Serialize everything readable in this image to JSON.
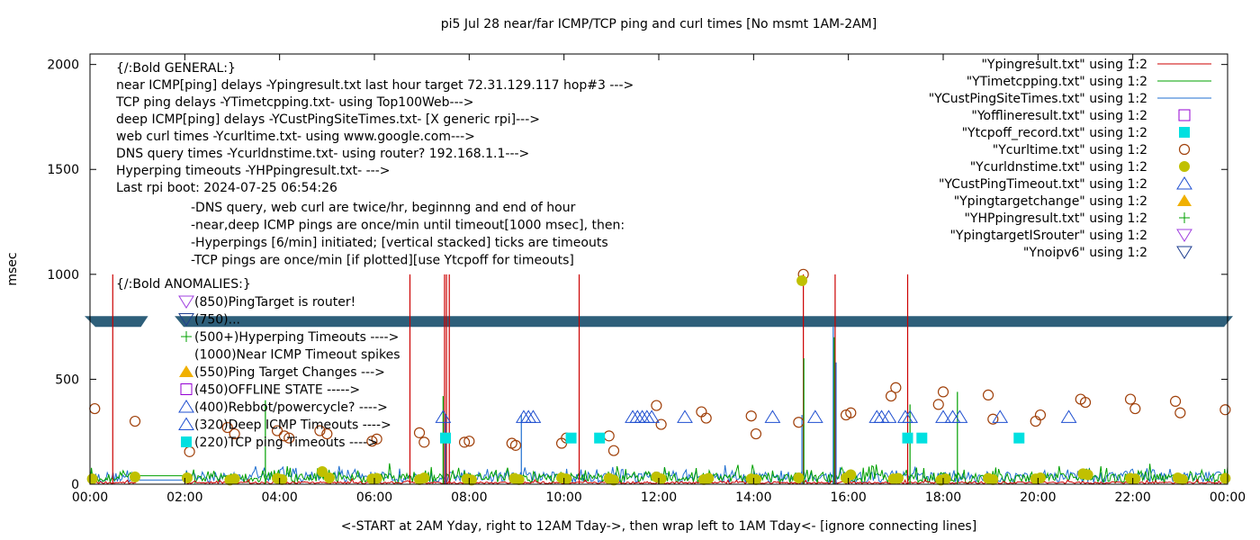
{
  "chart_data": {
    "type": "line",
    "title": "pi5 Jul 28  near/far ICMP/TCP ping and curl times [No msmt 1AM-2AM]",
    "xlabel": "<-START at 2AM Yday, right to 12AM Tday->, then wrap left to 1AM Tday<- [ignore connecting lines]",
    "ylabel": "msec",
    "xlim": [
      0,
      24
    ],
    "ylim": [
      0,
      2050
    ],
    "grid": false,
    "legend_position": "top-right",
    "x_ticks": [
      {
        "v": 0,
        "label": "00:00"
      },
      {
        "v": 2,
        "label": "02:00"
      },
      {
        "v": 4,
        "label": "04:00"
      },
      {
        "v": 6,
        "label": "06:00"
      },
      {
        "v": 8,
        "label": "08:00"
      },
      {
        "v": 10,
        "label": "10:00"
      },
      {
        "v": 12,
        "label": "12:00"
      },
      {
        "v": 14,
        "label": "14:00"
      },
      {
        "v": 16,
        "label": "16:00"
      },
      {
        "v": 18,
        "label": "18:00"
      },
      {
        "v": 20,
        "label": "20:00"
      },
      {
        "v": 22,
        "label": "22:00"
      },
      {
        "v": 24,
        "label": "00:00"
      }
    ],
    "y_ticks": [
      {
        "v": 0,
        "label": "0"
      },
      {
        "v": 500,
        "label": "500"
      },
      {
        "v": 1000,
        "label": "1000"
      },
      {
        "v": 1500,
        "label": "1500"
      },
      {
        "v": 2000,
        "label": "2000"
      }
    ],
    "legend": [
      {
        "label": "\"Ypingresult.txt\" using 1:2",
        "marker": "line",
        "color": "#cc0000"
      },
      {
        "label": "\"YTimetcpping.txt\" using 1:2",
        "marker": "line",
        "color": "#00a000"
      },
      {
        "label": "\"YCustPingSiteTimes.txt\" using 1:2",
        "marker": "line",
        "color": "#1f6fd0"
      },
      {
        "label": "\"Yofflineresult.txt\" using 1:2",
        "marker": "open-square",
        "color": "#9400d3"
      },
      {
        "label": "\"Ytcpoff_record.txt\" using 1:2",
        "marker": "filled-square",
        "color": "#00e0e0"
      },
      {
        "label": "\"Ycurltime.txt\" using 1:2",
        "marker": "open-circle",
        "color": "#a0400a"
      },
      {
        "label": "\"Ycurldnstime.txt\" using 1:2",
        "marker": "filled-circle",
        "color": "#c0c000"
      },
      {
        "label": "\"YCustPingTimeout.txt\" using 1:2",
        "marker": "open-triangle-up",
        "color": "#1f4fd0"
      },
      {
        "label": "\"Ypingtargetchange\" using 1:2",
        "marker": "filled-triangle-up",
        "color": "#f0b000"
      },
      {
        "label": "\"YHPpingresult.txt\" using 1:2",
        "marker": "plus",
        "color": "#00a000"
      },
      {
        "label": "\"YpingtargetISrouter\" using 1:2",
        "marker": "open-triangle-down",
        "color": "#a040e0"
      },
      {
        "label": "\"Ynoipv6\" using 1:2",
        "marker": "open-triangle-down",
        "color": "#1f3f90"
      }
    ],
    "annotation_lines": [
      "{/:Bold GENERAL:}",
      "near ICMP[ping] delays -Ypingresult.txt last hour target 72.31.129.117 hop#3 --->",
      "TCP ping delays -YTimetcpping.txt- using Top100Web--->",
      "deep ICMP[ping] delays -YCustPingSiteTimes.txt- [X generic rpi]--->",
      "web curl times -Ycurltime.txt- using www.google.com--->",
      "DNS query times -Ycurldnstime.txt- using router? 192.168.1.1--->",
      "Hyperping timeouts -YHPpingresult.txt- --->",
      "Last rpi boot: 2024-07-25 06:54:26"
    ],
    "notes_lines": [
      "-DNS query, web curl are twice/hr, beginnng and end of hour",
      "-near,deep ICMP pings are once/min until timeout[1000 msec], then:",
      "  -Hyperpings [6/min] initiated; [vertical stacked] ticks are timeouts",
      "-TCP pings are once/min [if plotted][use Ytcpoff for timeouts]"
    ],
    "anomalies_title": "{/:Bold ANOMALIES:}",
    "anomalies": [
      {
        "label": "(850)PingTarget is router!",
        "marker": "open-triangle-down",
        "color": "#a040e0",
        "level": 850
      },
      {
        "label": "(750)...",
        "marker": "open-triangle-down",
        "color": "#1f3f90",
        "level": 750
      },
      {
        "label": "(500+)Hyperping Timeouts ---->",
        "marker": "plus",
        "color": "#00a000",
        "level": 500
      },
      {
        "label": "(1000)Near ICMP Timeout spikes",
        "marker": "none",
        "color": "#cc0000",
        "level": 1000
      },
      {
        "label": "(550)Ping Target Changes --->",
        "marker": "filled-triangle-up",
        "color": "#f0b000",
        "level": 550
      },
      {
        "label": "(450)OFFLINE STATE ----->",
        "marker": "open-square",
        "color": "#9400d3",
        "level": 450
      },
      {
        "label": "(400)Rebbot/powercycle? ---->",
        "marker": "open-triangle-up",
        "color": "#1f4fd0",
        "level": 400
      },
      {
        "label": "(320)Deep ICMP Timeouts ---->",
        "marker": "open-triangle-up",
        "color": "#1f4fd0",
        "level": 320
      },
      {
        "label": "(220)TCP ping Timeouts ---->",
        "marker": "filled-square",
        "color": "#00e0e0",
        "level": 220
      }
    ],
    "noipv6_band": {
      "y": 775,
      "color": "#2e5f7a",
      "gap_x": [
        1.15,
        1.9
      ]
    },
    "series_ping_spikes": {
      "name": "Ypingresult.txt",
      "color": "#cc0000",
      "x": [
        0.48,
        6.75,
        7.48,
        7.52,
        7.58,
        10.32,
        15.05,
        15.72,
        17.25
      ],
      "y": [
        1000,
        1000,
        1000,
        1000,
        1000,
        1000,
        1000,
        1000,
        1000
      ]
    },
    "series_deep_spikes": {
      "name": "YCustPingSiteTimes.txt",
      "color": "#1f6fd0",
      "x": [
        7.5,
        9.1,
        15.02,
        15.68,
        15.74
      ],
      "y": [
        330,
        330,
        330,
        750,
        580
      ]
    },
    "series_hp_spikes": {
      "name": "YHPpingresult.txt",
      "color": "#00a000",
      "x": [
        3.7,
        7.45,
        15.06,
        15.7,
        17.3,
        18.3
      ],
      "y": [
        400,
        420,
        600,
        700,
        380,
        440
      ]
    },
    "series_curltime": {
      "x": [
        0.1,
        0.95,
        2.1,
        2.9,
        3.05,
        3.95,
        4.1,
        4.2,
        4.85,
        5.0,
        5.95,
        6.05,
        6.95,
        7.05,
        7.9,
        8.0,
        8.9,
        8.98,
        9.95,
        10.05,
        10.95,
        11.05,
        11.95,
        12.05,
        12.9,
        13.0,
        13.95,
        14.05,
        14.95,
        15.05,
        15.95,
        16.05,
        16.9,
        17.0,
        17.9,
        18.0,
        18.95,
        19.05,
        19.95,
        20.05,
        20.9,
        21.0,
        21.95,
        22.05,
        22.9,
        23.0,
        23.95
      ],
      "y": [
        360,
        300,
        155,
        270,
        240,
        255,
        230,
        220,
        255,
        240,
        205,
        215,
        245,
        200,
        200,
        205,
        195,
        185,
        195,
        220,
        230,
        160,
        375,
        285,
        345,
        315,
        325,
        240,
        295,
        1000,
        330,
        340,
        420,
        460,
        380,
        440,
        425,
        310,
        300,
        330,
        405,
        390,
        405,
        360,
        395,
        340,
        355
      ]
    },
    "series_dnstime": {
      "x": [
        0.05,
        0.95,
        2.05,
        2.95,
        3.05,
        3.95,
        4.05,
        4.9,
        5.05,
        5.95,
        6.05,
        6.95,
        7.05,
        7.95,
        8.05,
        8.95,
        9.05,
        9.95,
        10.05,
        10.95,
        11.05,
        11.95,
        12.05,
        12.95,
        13.05,
        13.95,
        14.05,
        14.95,
        15.02,
        15.95,
        16.05,
        16.95,
        17.05,
        17.95,
        18.05,
        18.95,
        19.05,
        19.95,
        20.05,
        20.95,
        21.05,
        21.95,
        22.05,
        22.95,
        23.05,
        23.95
      ],
      "y": [
        25,
        35,
        30,
        20,
        25,
        28,
        22,
        60,
        30,
        25,
        28,
        22,
        30,
        25,
        20,
        28,
        22,
        30,
        25,
        28,
        20,
        35,
        25,
        22,
        28,
        25,
        22,
        30,
        970,
        30,
        45,
        25,
        28,
        20,
        25,
        28,
        22,
        25,
        30,
        50,
        45,
        28,
        25,
        30,
        22,
        28
      ]
    },
    "series_deep_timeouts": {
      "x": [
        7.45,
        9.15,
        9.25,
        9.35,
        11.45,
        11.55,
        11.65,
        11.75,
        11.85,
        12.55,
        14.4,
        15.3,
        16.6,
        16.7,
        16.85,
        17.2,
        17.3,
        18.0,
        18.2,
        18.35,
        19.2,
        20.65
      ],
      "y": [
        320,
        320,
        320,
        320,
        320,
        320,
        320,
        320,
        320,
        320,
        320,
        320,
        320,
        320,
        320,
        320,
        320,
        320,
        320,
        320,
        320,
        320
      ]
    },
    "series_tcp_timeouts": {
      "x": [
        7.5,
        10.15,
        10.75,
        17.25,
        17.55,
        19.6
      ],
      "y": [
        220,
        220,
        220,
        220,
        220,
        220
      ]
    }
  }
}
